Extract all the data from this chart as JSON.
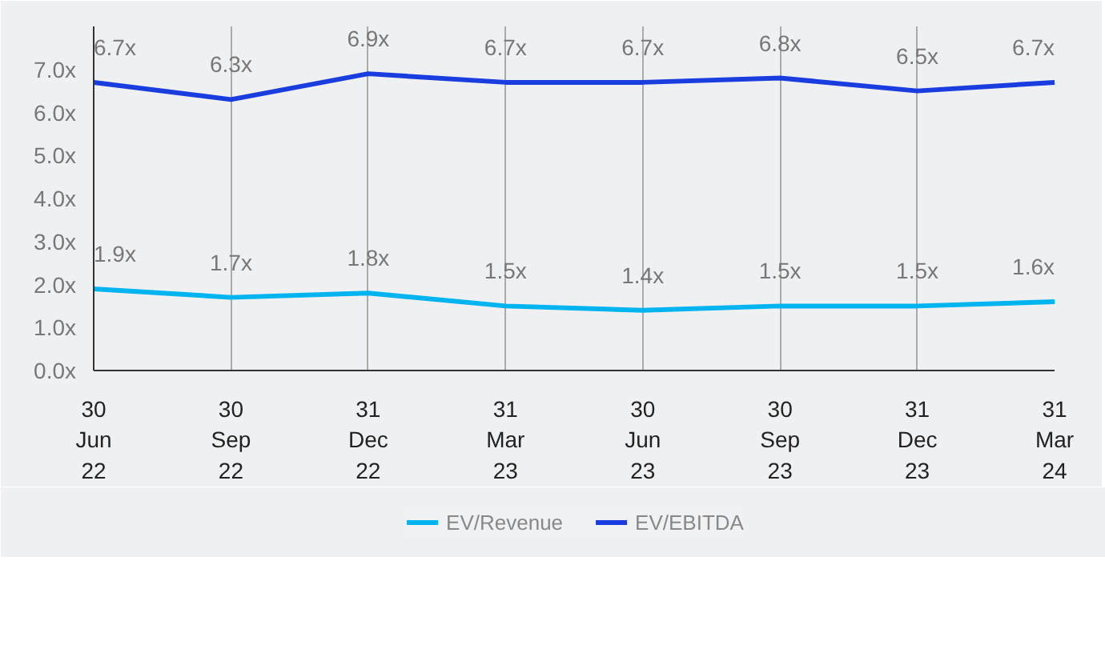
{
  "chart_data": {
    "type": "line",
    "categories": [
      "30\nJun\n22",
      "30\nSep\n22",
      "31\nDec\n22",
      "31\nMar\n23",
      "30\nJun\n23",
      "30\nSep\n23",
      "31\nDec\n23",
      "31\nMar\n24"
    ],
    "series": [
      {
        "name": "EV/Revenue",
        "color": "#00b4f0",
        "values": [
          1.9,
          1.7,
          1.8,
          1.5,
          1.4,
          1.5,
          1.5,
          1.6
        ],
        "value_labels": [
          "1.9x",
          "1.7x",
          "1.8x",
          "1.5x",
          "1.4x",
          "1.5x",
          "1.5x",
          "1.6x"
        ]
      },
      {
        "name": "EV/EBITDA",
        "color": "#1a3de0",
        "values": [
          6.7,
          6.3,
          6.9,
          6.7,
          6.7,
          6.8,
          6.5,
          6.7
        ],
        "value_labels": [
          "6.7x",
          "6.3x",
          "6.9x",
          "6.7x",
          "6.7x",
          "6.8x",
          "6.5x",
          "6.7x"
        ]
      }
    ],
    "ylim": [
      0,
      8
    ],
    "yticks": [
      {
        "value": 0,
        "label": "0.0x"
      },
      {
        "value": 1,
        "label": "1.0x"
      },
      {
        "value": 2,
        "label": "2.0x"
      },
      {
        "value": 3,
        "label": "3.0x"
      },
      {
        "value": 4,
        "label": "4.0x"
      },
      {
        "value": 5,
        "label": "5.0x"
      },
      {
        "value": 6,
        "label": "6.0x"
      },
      {
        "value": 7,
        "label": "7.0x"
      }
    ],
    "grid": "x",
    "legend": "bottom",
    "marker": "none",
    "line_style": "solid"
  }
}
